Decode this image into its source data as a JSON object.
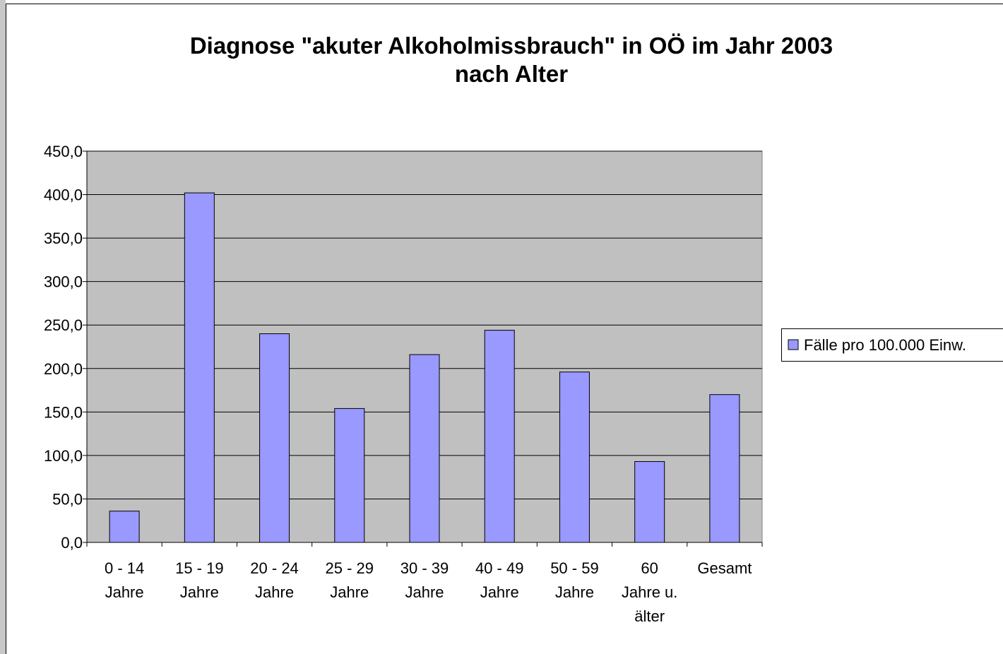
{
  "chart_data": {
    "type": "bar",
    "title": "Diagnose \"akuter Alkoholmissbrauch\" in OÖ im Jahr 2003\nnach Alter",
    "categories": [
      "0 - 14\nJahre",
      "15 - 19\nJahre",
      "20 - 24\nJahre",
      "25 - 29\nJahre",
      "30 - 39\nJahre",
      "40 - 49\nJahre",
      "50 - 59\nJahre",
      "60\nJahre u.\nälter",
      "Gesamt"
    ],
    "series": [
      {
        "name": "Fälle pro 100.000 Einw.",
        "color": "#9999ff",
        "values": [
          36,
          402,
          240,
          154,
          216,
          244,
          196,
          93,
          170
        ]
      }
    ],
    "ylim": [
      0,
      450
    ],
    "yticks": [
      {
        "value": 0,
        "label": "0,0"
      },
      {
        "value": 50,
        "label": "50,0"
      },
      {
        "value": 100,
        "label": "100,0"
      },
      {
        "value": 150,
        "label": "150,0"
      },
      {
        "value": 200,
        "label": "200,0"
      },
      {
        "value": 250,
        "label": "250,0"
      },
      {
        "value": 300,
        "label": "300,0"
      },
      {
        "value": 350,
        "label": "350,0"
      },
      {
        "value": 400,
        "label": "400,0"
      },
      {
        "value": 450,
        "label": "450,0"
      }
    ],
    "grid": true,
    "legend": "right",
    "plot_background": "#c0c0c0"
  }
}
